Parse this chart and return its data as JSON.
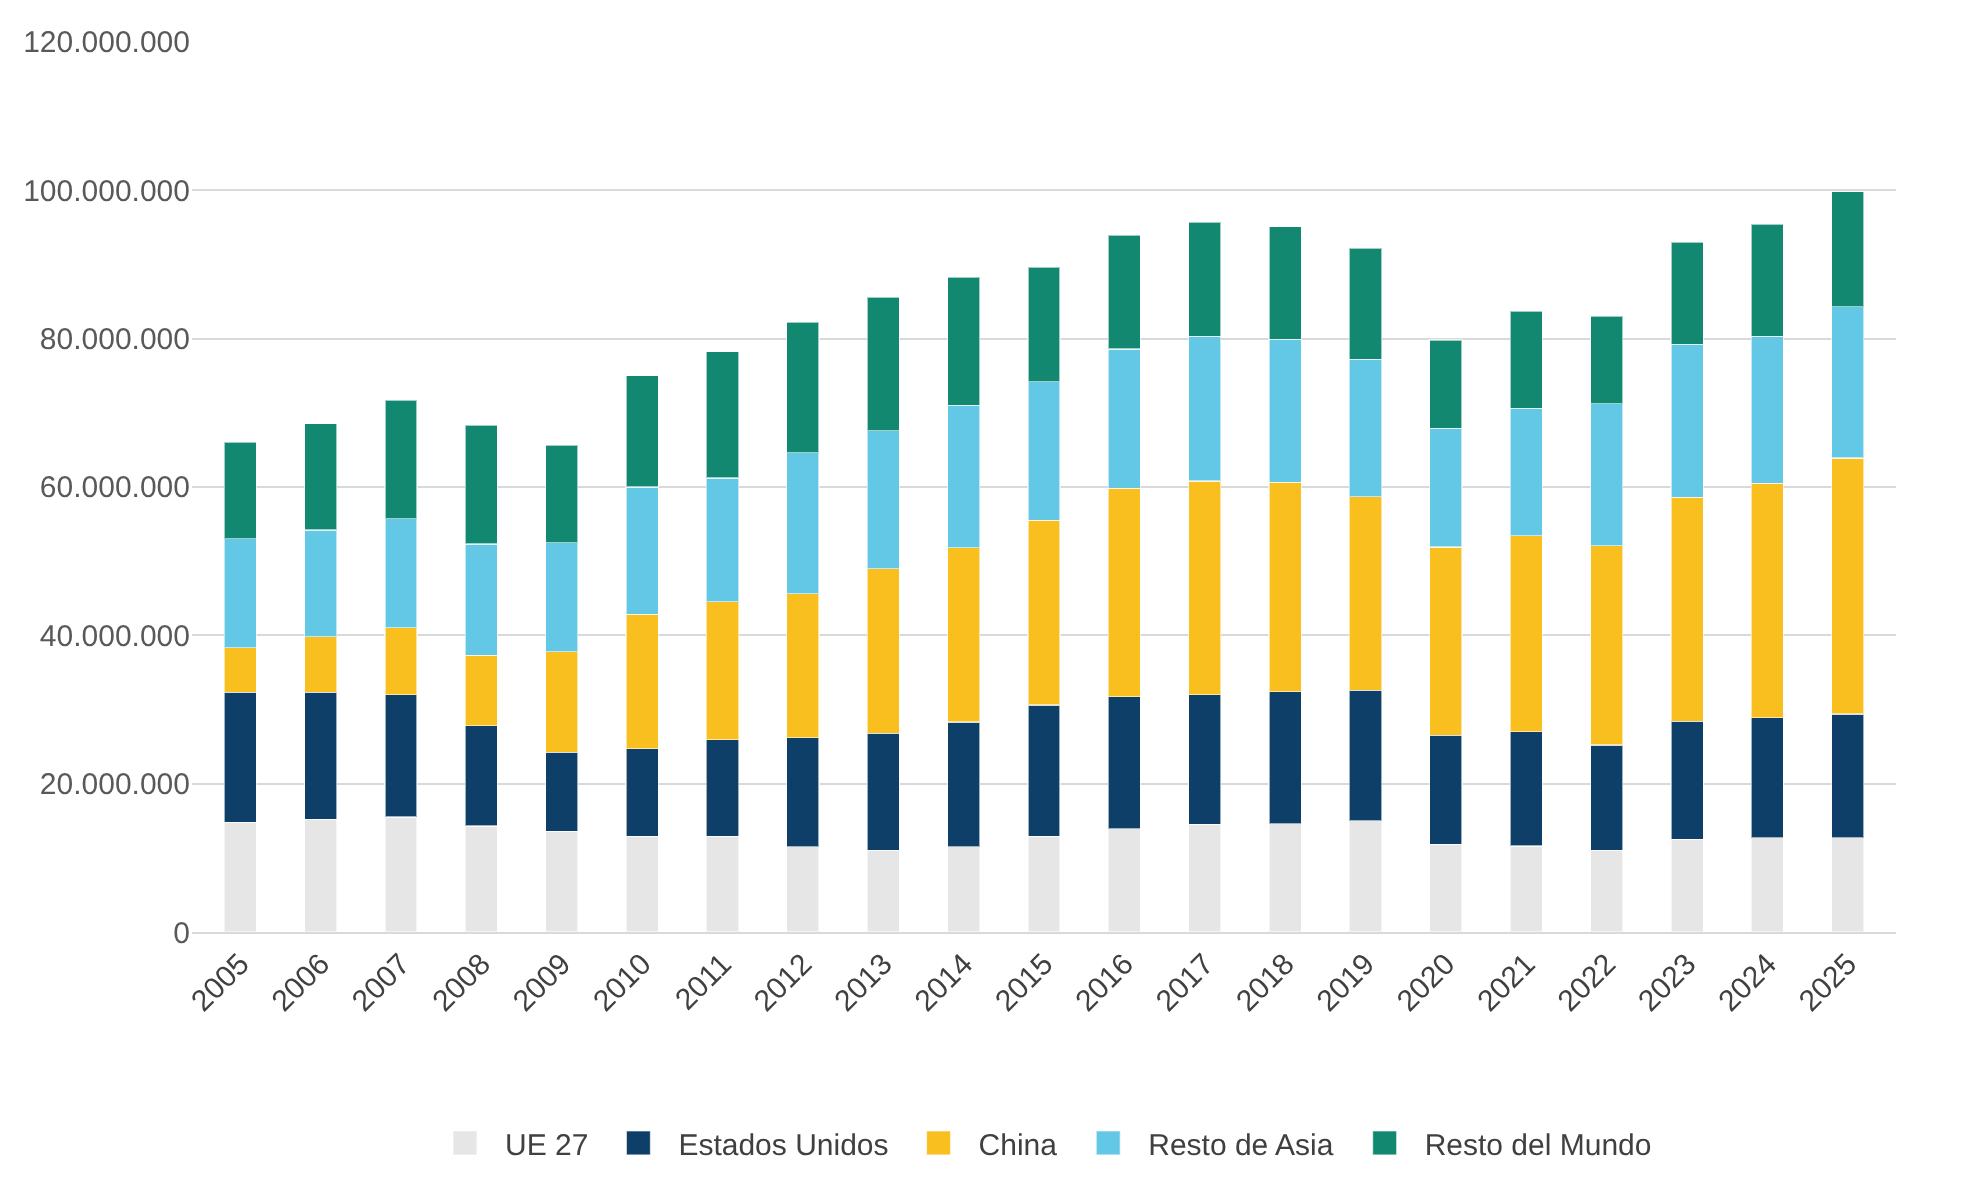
{
  "chart_data": {
    "type": "bar",
    "stacked": true,
    "grid": "y",
    "legend": "bottom",
    "categories": [
      "2005",
      "2006",
      "2007",
      "2008",
      "2009",
      "2010",
      "2011",
      "2012",
      "2013",
      "2014",
      "2015",
      "2016",
      "2017",
      "2018",
      "2019",
      "2020",
      "2021",
      "2022",
      "2023",
      "2024",
      "2025"
    ],
    "ylim": [
      0,
      120000000
    ],
    "yticks": [
      {
        "value": 0,
        "label": "0"
      },
      {
        "value": 20000000,
        "label": "20.000.000"
      },
      {
        "value": 40000000,
        "label": "40.000.000"
      },
      {
        "value": 60000000,
        "label": "60.000.000"
      },
      {
        "value": 80000000,
        "label": "80.000.000"
      },
      {
        "value": 100000000,
        "label": "100.000.000"
      },
      {
        "value": 120000000,
        "label": "120.000.000"
      }
    ],
    "series": [
      {
        "name": "UE 27",
        "color": "#e7e6e6",
        "values": [
          14800000,
          15200000,
          15500000,
          14300000,
          13600000,
          12900000,
          12900000,
          11500000,
          11000000,
          11500000,
          12900000,
          13900000,
          14500000,
          14600000,
          15000000,
          11800000,
          11600000,
          11000000,
          12500000,
          12700000,
          12700000
        ]
      },
      {
        "name": "Estados Unidos",
        "color": "#0e3f68",
        "values": [
          17500000,
          17100000,
          16500000,
          13500000,
          10600000,
          11800000,
          13000000,
          14700000,
          15800000,
          16800000,
          17700000,
          17800000,
          17500000,
          17800000,
          17600000,
          14700000,
          15400000,
          14200000,
          15900000,
          16200000,
          16700000
        ]
      },
      {
        "name": "China",
        "color": "#f9bf1e",
        "values": [
          6000000,
          7500000,
          9000000,
          9500000,
          13600000,
          18100000,
          18600000,
          19400000,
          22200000,
          23500000,
          24900000,
          28100000,
          28800000,
          28200000,
          26100000,
          25400000,
          26400000,
          26900000,
          30200000,
          31600000,
          34500000
        ]
      },
      {
        "name": "Resto de Asia",
        "color": "#62c8e5",
        "values": [
          14700000,
          14400000,
          14700000,
          15000000,
          14700000,
          17200000,
          16700000,
          19000000,
          18600000,
          19200000,
          18700000,
          18800000,
          19500000,
          19300000,
          18500000,
          16000000,
          17200000,
          19100000,
          20600000,
          19800000,
          20400000
        ]
      },
      {
        "name": "Resto del Mundo",
        "color": "#128870",
        "values": [
          13000000,
          14300000,
          16000000,
          16000000,
          13100000,
          15000000,
          17000000,
          17600000,
          18000000,
          17300000,
          15400000,
          15300000,
          15400000,
          15200000,
          15000000,
          11900000,
          13100000,
          11800000,
          13800000,
          15100000,
          15500000
        ]
      }
    ]
  }
}
